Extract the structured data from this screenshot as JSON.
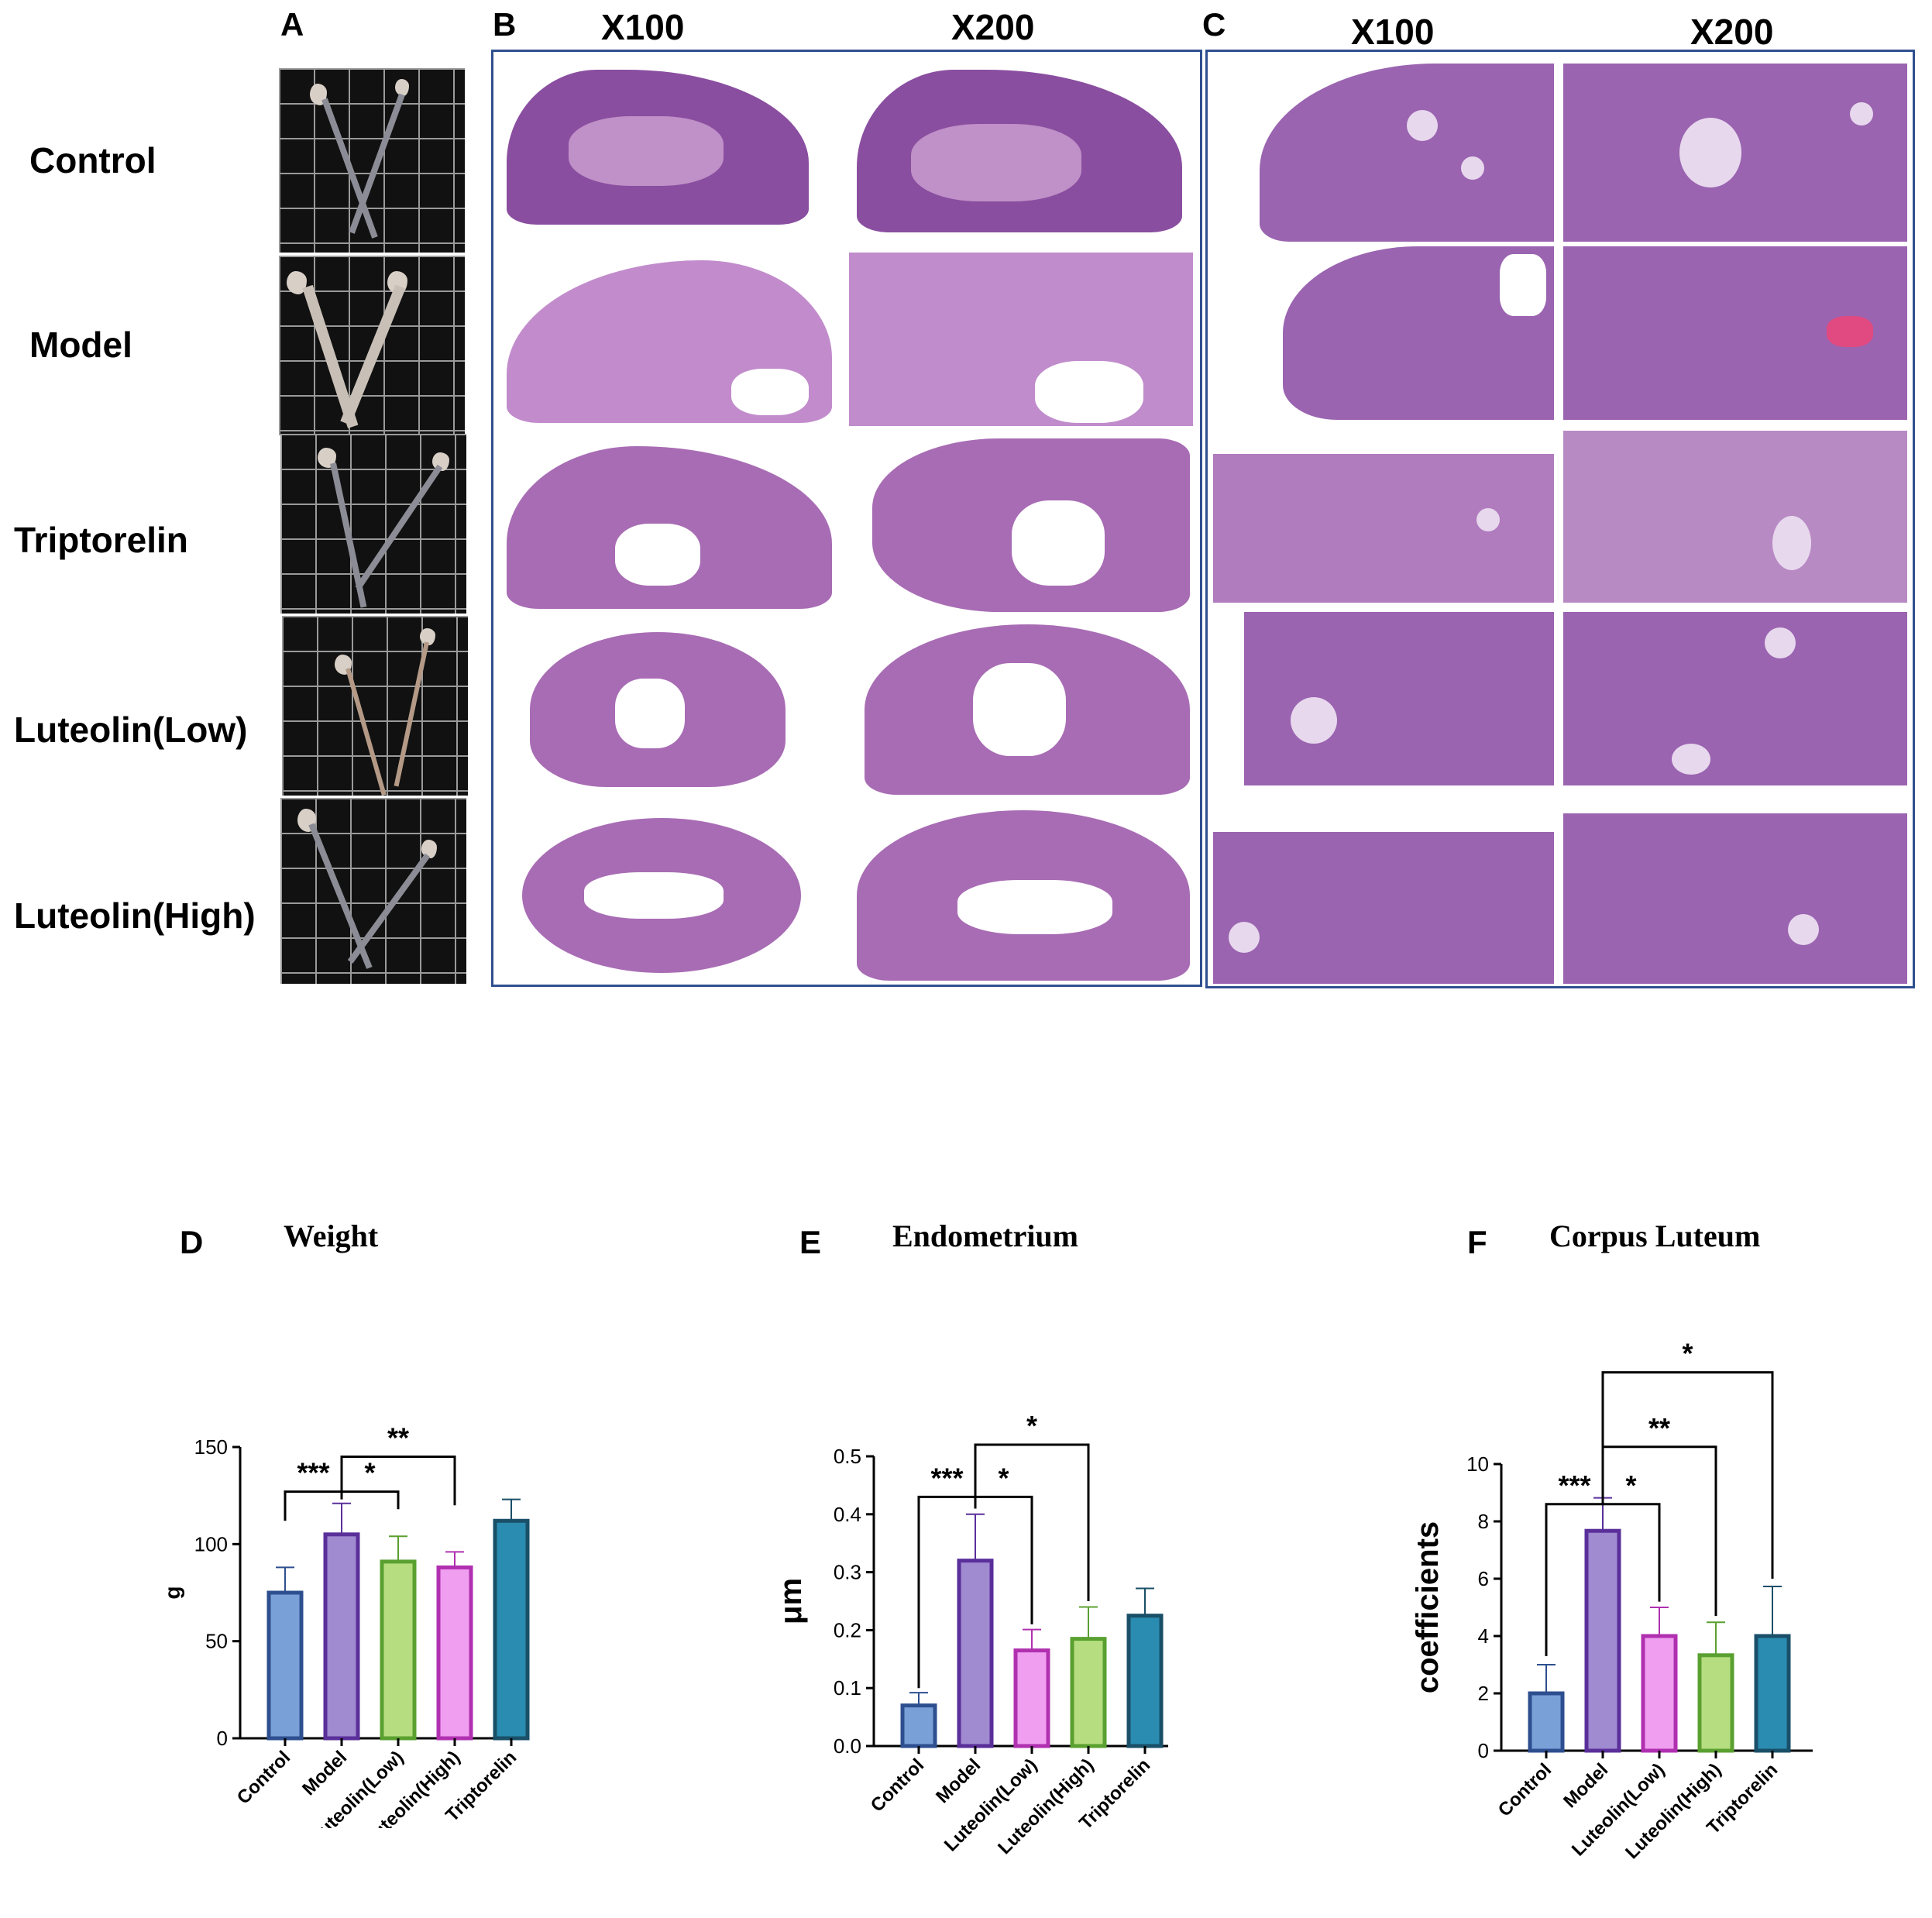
{
  "panel_labels": {
    "a": "A",
    "b": "B",
    "c": "C",
    "d": "D",
    "e": "E",
    "f": "F"
  },
  "magnifications": {
    "b_left": "X100",
    "b_right": "X200",
    "c_left": "X100",
    "c_right": "X200"
  },
  "row_labels": [
    "Control",
    "Model",
    "Triptorelin",
    "Luteolin(Low)",
    "Luteolin(High)"
  ],
  "chart_titles": {
    "d": "Weight",
    "e": "Endometrium",
    "f": "Corpus Luteum"
  },
  "chart_data": [
    {
      "type": "bar",
      "title": "Weight",
      "xlabel": "",
      "ylabel": "g",
      "ylim": [
        0,
        150
      ],
      "yticks": [
        0,
        50,
        100,
        150
      ],
      "categories": [
        "Control",
        "Model",
        "Luteolin(Low)",
        "Luteolin(High)",
        "Triptorelin"
      ],
      "values": [
        75,
        105,
        91,
        88,
        112
      ],
      "errors": [
        13,
        16,
        13,
        8,
        11
      ],
      "colors": [
        {
          "fill": "#7aa0d8",
          "stroke": "#2e4f8f"
        },
        {
          "fill": "#a08ad0",
          "stroke": "#5a2f9a"
        },
        {
          "fill": "#b6de80",
          "stroke": "#5aa030"
        },
        {
          "fill": "#f09ef0",
          "stroke": "#b030b0"
        },
        {
          "fill": "#2a8cb0",
          "stroke": "#1a4f68"
        }
      ],
      "brackets": [
        {
          "from": 0,
          "to": 1,
          "label": "***"
        },
        {
          "from": 1,
          "to": 2,
          "label": "*"
        },
        {
          "from": 1,
          "to": 3,
          "label": "**"
        }
      ]
    },
    {
      "type": "bar",
      "title": "Endometrium",
      "xlabel": "",
      "ylabel": "μm",
      "ylim": [
        0,
        0.5
      ],
      "yticks": [
        0.0,
        0.1,
        0.2,
        0.3,
        0.4,
        0.5
      ],
      "categories": [
        "Control",
        "Model",
        "Luteolin(Low)",
        "Luteolin(High)",
        "Triptorelin"
      ],
      "values": [
        0.07,
        0.32,
        0.165,
        0.185,
        0.225
      ],
      "errors": [
        0.022,
        0.08,
        0.036,
        0.055,
        0.047
      ],
      "colors": [
        {
          "fill": "#7aa0d8",
          "stroke": "#2e4f8f"
        },
        {
          "fill": "#a08ad0",
          "stroke": "#5a2f9a"
        },
        {
          "fill": "#f09ef0",
          "stroke": "#b030b0"
        },
        {
          "fill": "#b6de80",
          "stroke": "#5aa030"
        },
        {
          "fill": "#2a8cb0",
          "stroke": "#1a4f68"
        }
      ],
      "brackets": [
        {
          "from": 0,
          "to": 1,
          "label": "***"
        },
        {
          "from": 1,
          "to": 2,
          "label": "*"
        },
        {
          "from": 1,
          "to": 3,
          "label": "*"
        }
      ]
    },
    {
      "type": "bar",
      "title": "Corpus Luteum",
      "xlabel": "",
      "ylabel": "coefficients",
      "ylim": [
        0,
        10
      ],
      "yticks": [
        0,
        2,
        4,
        6,
        8,
        10
      ],
      "categories": [
        "Control",
        "Model",
        "Luteolin(Low)",
        "Luteolin(High)",
        "Triptorelin"
      ],
      "values": [
        2.0,
        7.67,
        4.0,
        3.33,
        4.0
      ],
      "errors": [
        1.0,
        1.15,
        1.0,
        1.15,
        1.73
      ],
      "colors": [
        {
          "fill": "#7aa0d8",
          "stroke": "#2e4f8f"
        },
        {
          "fill": "#a08ad0",
          "stroke": "#5a2f9a"
        },
        {
          "fill": "#f09ef0",
          "stroke": "#b030b0"
        },
        {
          "fill": "#b6de80",
          "stroke": "#5aa030"
        },
        {
          "fill": "#2a8cb0",
          "stroke": "#1a4f68"
        }
      ],
      "brackets": [
        {
          "from": 0,
          "to": 1,
          "label": "***"
        },
        {
          "from": 1,
          "to": 2,
          "label": "*"
        },
        {
          "from": 1,
          "to": 3,
          "label": "**"
        },
        {
          "from": 1,
          "to": 4,
          "label": "*"
        }
      ]
    }
  ]
}
